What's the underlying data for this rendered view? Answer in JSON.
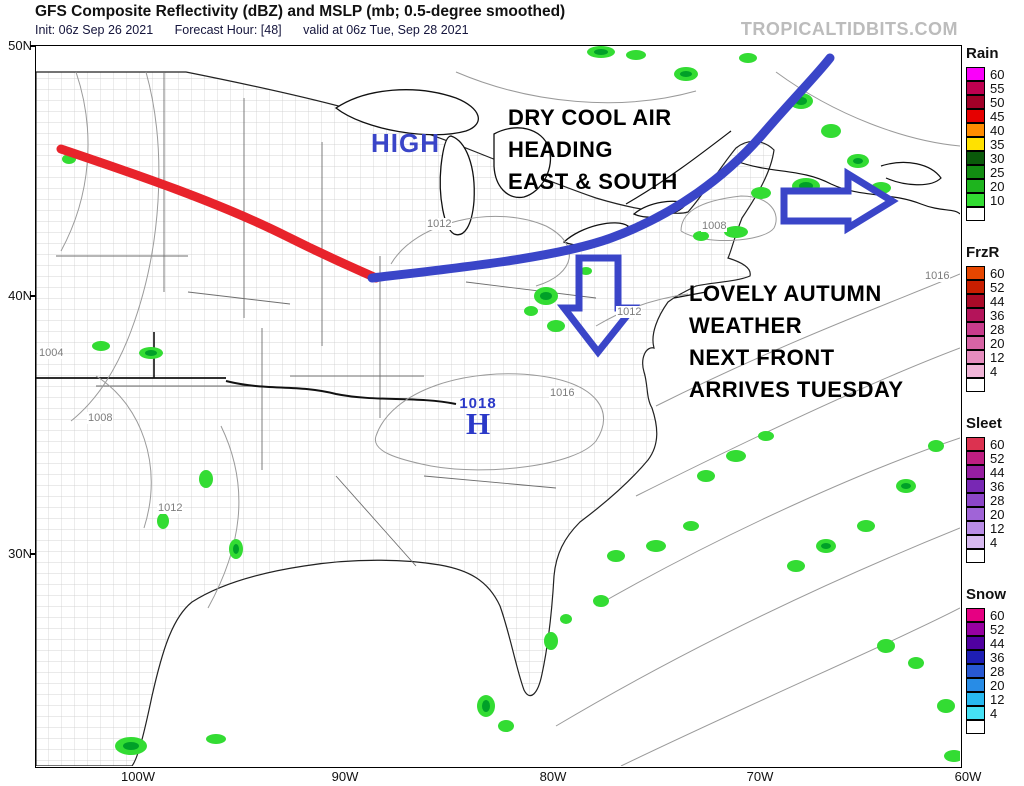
{
  "header": {
    "title": "GFS Composite Reflectivity (dBZ) and MSLP (mb; 0.5-degree smoothed)",
    "init_label": "Init: 06z Sep 26 2021",
    "forecast_hour_label": "Forecast Hour: [48]",
    "valid_label": "valid at 06z Tue, Sep 28 2021",
    "watermark": "TROPICALTIDBITS.COM"
  },
  "map": {
    "lat_labels": [
      "50N",
      "40N",
      "30N"
    ],
    "lon_labels": [
      "100W",
      "90W",
      "80W",
      "70W",
      "60W"
    ],
    "contour_labels": [
      "1012",
      "1008",
      "1016",
      "1012",
      "1016",
      "1008",
      "1012",
      "1004"
    ],
    "annotations": {
      "high": "HIGH",
      "dry_cool_1": "DRY COOL AIR",
      "dry_cool_2": "HEADING",
      "dry_cool_3": "EAST & SOUTH",
      "autumn_1": "LOVELY AUTUMN",
      "autumn_2": "WEATHER",
      "autumn_3": "NEXT FRONT",
      "autumn_4": "ARRIVES TUESDAY",
      "high_center_value": "1018",
      "high_center_symbol": "H"
    },
    "colors": {
      "warm_front_red": "#E8232B",
      "cold_air_blue": "#3A45C8",
      "contour_gray": "#9A9A9A",
      "precip_green_light": "#33DC33",
      "precip_green_dark": "#00A028"
    }
  },
  "legend": {
    "scales": [
      {
        "title": "Rain",
        "segments": [
          {
            "color": "#FA00FA",
            "label": "60"
          },
          {
            "color": "#BE0050",
            "label": "55"
          },
          {
            "color": "#A00028",
            "label": "50"
          },
          {
            "color": "#E60000",
            "label": "45"
          },
          {
            "color": "#FF8C00",
            "label": "40"
          },
          {
            "color": "#FFE100",
            "label": "35"
          },
          {
            "color": "#0A5A0A",
            "label": "30"
          },
          {
            "color": "#128C12",
            "label": "25"
          },
          {
            "color": "#1EB41E",
            "label": "20"
          },
          {
            "color": "#32DC32",
            "label": "10"
          },
          {
            "color": "#FFFFFF",
            "label": ""
          }
        ]
      },
      {
        "title": "FrzR",
        "segments": [
          {
            "color": "#E64600",
            "label": "60"
          },
          {
            "color": "#C81E00",
            "label": "52"
          },
          {
            "color": "#AA0A28",
            "label": "44"
          },
          {
            "color": "#B4145A",
            "label": "36"
          },
          {
            "color": "#C83C8C",
            "label": "28"
          },
          {
            "color": "#D764A5",
            "label": "20"
          },
          {
            "color": "#E68CBE",
            "label": "12"
          },
          {
            "color": "#F0B4D7",
            "label": "4"
          },
          {
            "color": "#FFFFFF",
            "label": ""
          }
        ]
      },
      {
        "title": "Sleet",
        "segments": [
          {
            "color": "#DC3250",
            "label": "60"
          },
          {
            "color": "#BE1E82",
            "label": "52"
          },
          {
            "color": "#961EA0",
            "label": "44"
          },
          {
            "color": "#7828B4",
            "label": "36"
          },
          {
            "color": "#8C46C8",
            "label": "28"
          },
          {
            "color": "#A064D7",
            "label": "20"
          },
          {
            "color": "#B98CE6",
            "label": "12"
          },
          {
            "color": "#D7B9F0",
            "label": "4"
          },
          {
            "color": "#FFFFFF",
            "label": ""
          }
        ]
      },
      {
        "title": "Snow",
        "segments": [
          {
            "color": "#E60082",
            "label": "60"
          },
          {
            "color": "#9600A0",
            "label": "52"
          },
          {
            "color": "#5000A0",
            "label": "44"
          },
          {
            "color": "#1E1EB4",
            "label": "36"
          },
          {
            "color": "#2858D2",
            "label": "28"
          },
          {
            "color": "#288CE6",
            "label": "20"
          },
          {
            "color": "#28B9F0",
            "label": "12"
          },
          {
            "color": "#46E1F5",
            "label": "4"
          },
          {
            "color": "#FFFFFF",
            "label": ""
          }
        ]
      }
    ]
  }
}
